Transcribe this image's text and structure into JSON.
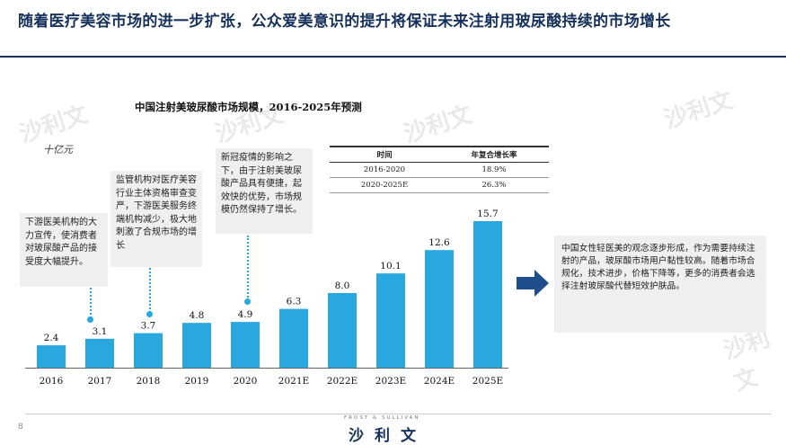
{
  "header": {
    "title": "随着医疗美容市场的进一步扩张，公众爱美意识的提升将保证未来注射用玻尿酸持续的市场增长"
  },
  "watermark": "沙利文",
  "chart_data": {
    "type": "bar",
    "title": "中国注射美玻尿酸市场规模，2016-2025年预测",
    "unit": "十亿元",
    "categories": [
      "2016",
      "2017",
      "2018",
      "2019",
      "2020",
      "2021E",
      "2022E",
      "2023E",
      "2024E",
      "2025E"
    ],
    "values": [
      2.4,
      3.1,
      3.7,
      4.8,
      4.9,
      6.3,
      8.0,
      10.1,
      12.6,
      15.7
    ],
    "value_labels": [
      "2.4",
      "3.1",
      "3.7",
      "4.8",
      "4.9",
      "6.3",
      "8.0",
      "10.1",
      "12.6",
      "15.7"
    ],
    "ylim": [
      0,
      15.7
    ],
    "bar_color": "#29a8e0",
    "grid": false,
    "growth_table": {
      "headers": [
        "时间",
        "年复合增长率"
      ],
      "rows": [
        [
          "2016-2020",
          "18.9%"
        ],
        [
          "2020-2025E",
          "26.3%"
        ]
      ]
    },
    "annotations": [
      "下游医美机构的大力宣传，使消费者对玻尿酸产品的接受度大幅提升。",
      "监管机构对医疗美容行业主体资格审查变严，下游医美服务终端机构减少，极大地刺激了合规市场的增长",
      "新冠疫情的影响之下，由于注射美玻尿酸产品具有便捷，起效快的优势，市场规模仍然保持了增长。"
    ]
  },
  "right_panel": {
    "text": "中国女性轻医美的观念逐步形成，作为需要持续注射的产品，玻尿酸市场用户黏性较高。随着市场合规化，技术进步，价格下降等，更多的消费者会选择注射玻尿酸代替短效护肤品。"
  },
  "footer": {
    "page": "8",
    "brand_small": "FROST & SULLIVAN",
    "brand": "沙利文"
  },
  "colors": {
    "title": "#16325c",
    "accent": "#29a8e0",
    "arrow": "#1e4e8c"
  }
}
